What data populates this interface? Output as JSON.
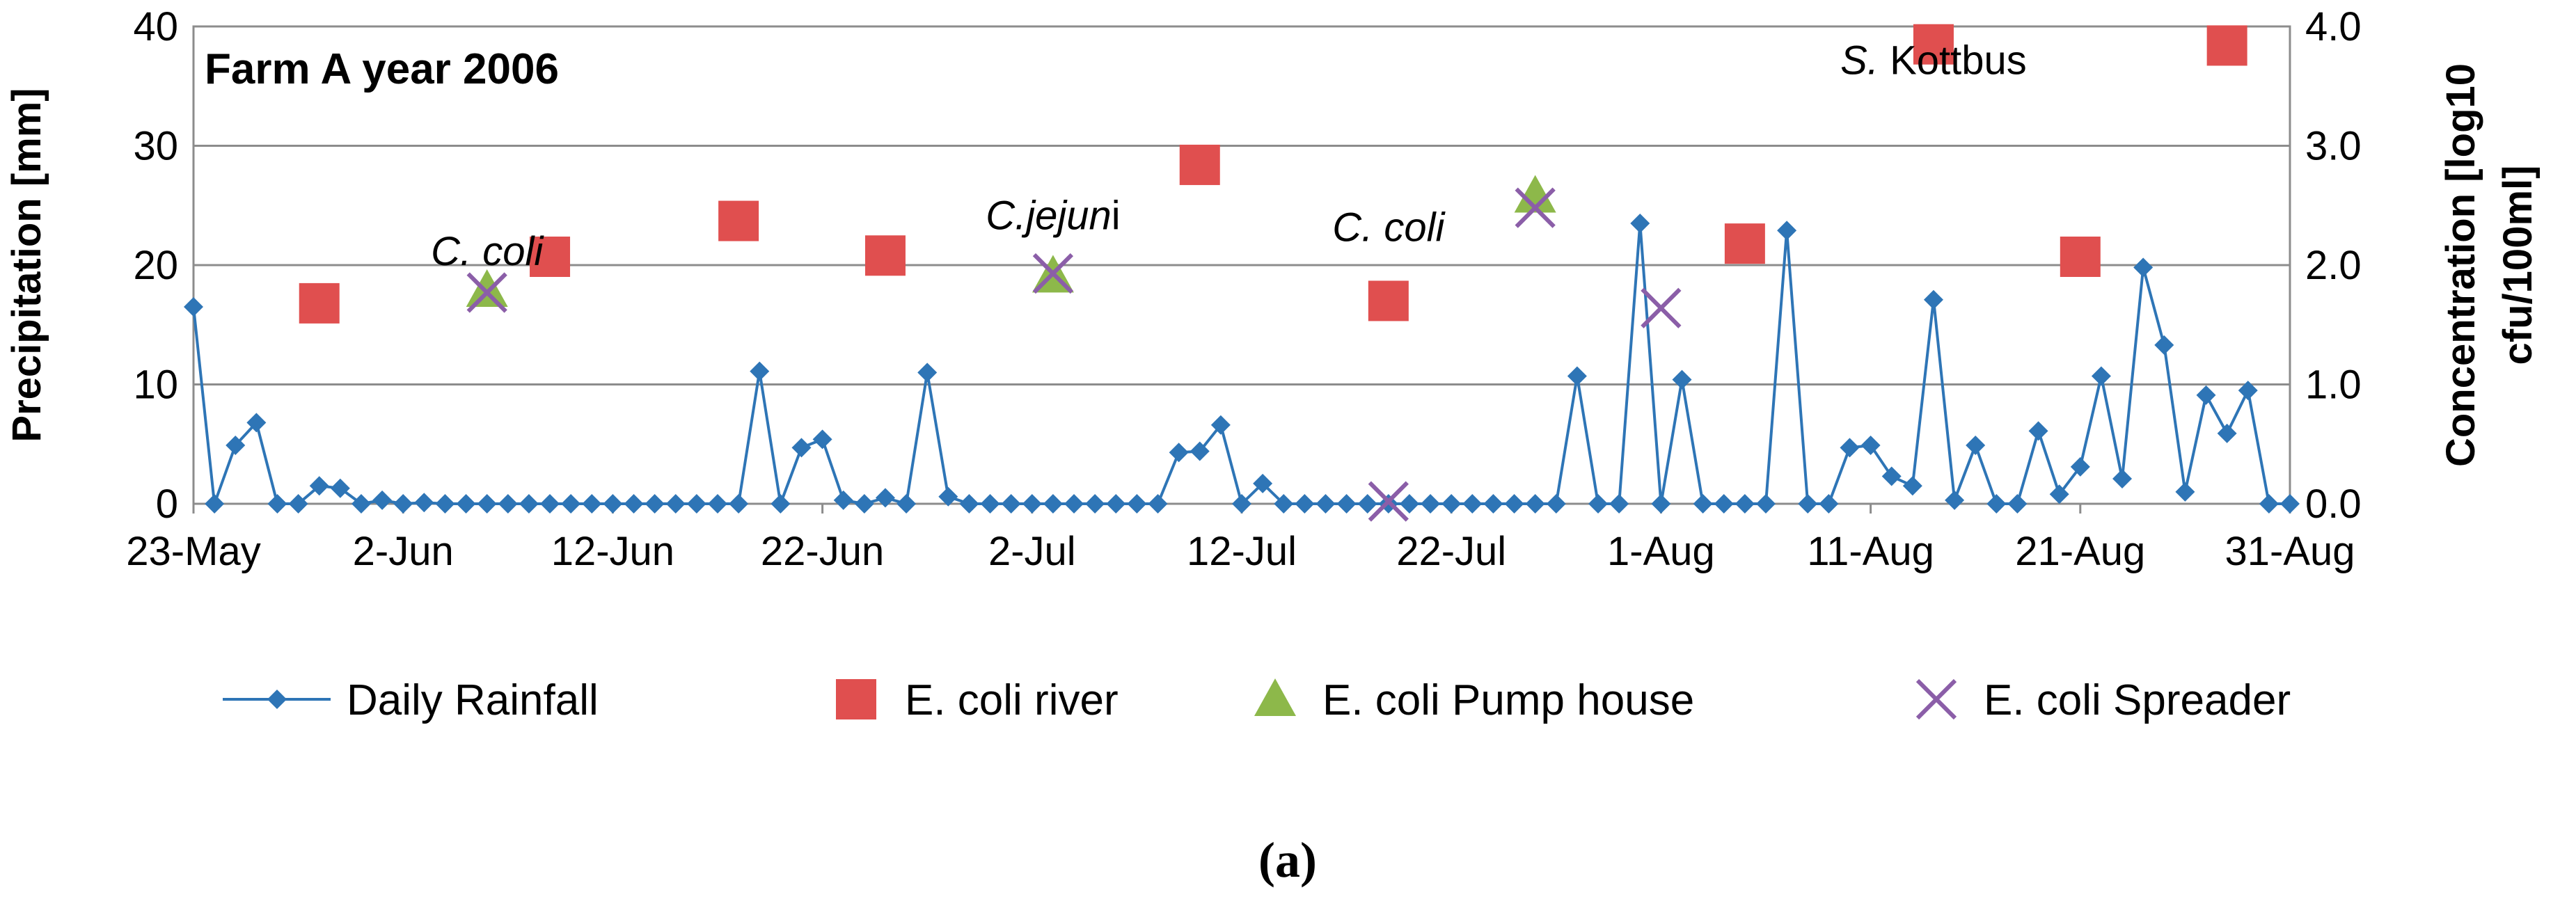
{
  "chart_data": {
    "type": "line",
    "title": "Farm A year 2006",
    "ylabel": "Precipitation [mm]",
    "y2label": "Concentration [log10 cfu/100ml]",
    "y2label_lines": [
      "Concentration [log10",
      "cfu/100ml]"
    ],
    "ylim": [
      0,
      40
    ],
    "y2lim": [
      0,
      4
    ],
    "yticks": [
      "0",
      "10",
      "20",
      "30",
      "40"
    ],
    "y2ticks": [
      "0.0",
      "1.0",
      "2.0",
      "3.0",
      "4.0"
    ],
    "xlim": [
      "2006-05-23",
      "2006-08-31"
    ],
    "xticks": [
      {
        "date": "2006-05-23",
        "label": "23-May"
      },
      {
        "date": "2006-06-02",
        "label": "2-Jun"
      },
      {
        "date": "2006-06-12",
        "label": "12-Jun"
      },
      {
        "date": "2006-06-22",
        "label": "22-Jun"
      },
      {
        "date": "2006-07-02",
        "label": "2-Jul"
      },
      {
        "date": "2006-07-12",
        "label": "12-Jul"
      },
      {
        "date": "2006-07-22",
        "label": "22-Jul"
      },
      {
        "date": "2006-08-01",
        "label": "1-Aug"
      },
      {
        "date": "2006-08-11",
        "label": "11-Aug"
      },
      {
        "date": "2006-08-21",
        "label": "21-Aug"
      },
      {
        "date": "2006-08-31",
        "label": "31-Aug"
      }
    ],
    "grid": "horizontal",
    "legend_position": "bottom",
    "series": [
      {
        "name": "Daily Rainfall",
        "axis": "left",
        "marker": "diamond",
        "color": "#2E75B6",
        "x": [
          "2006-05-23",
          "2006-05-24",
          "2006-05-25",
          "2006-05-26",
          "2006-05-27",
          "2006-05-28",
          "2006-05-29",
          "2006-05-30",
          "2006-05-31",
          "2006-06-01",
          "2006-06-02",
          "2006-06-03",
          "2006-06-04",
          "2006-06-05",
          "2006-06-06",
          "2006-06-07",
          "2006-06-08",
          "2006-06-09",
          "2006-06-10",
          "2006-06-11",
          "2006-06-12",
          "2006-06-13",
          "2006-06-14",
          "2006-06-15",
          "2006-06-16",
          "2006-06-17",
          "2006-06-18",
          "2006-06-19",
          "2006-06-20",
          "2006-06-21",
          "2006-06-22",
          "2006-06-23",
          "2006-06-24",
          "2006-06-25",
          "2006-06-26",
          "2006-06-27",
          "2006-06-28",
          "2006-06-29",
          "2006-06-30",
          "2006-07-01",
          "2006-07-02",
          "2006-07-03",
          "2006-07-04",
          "2006-07-05",
          "2006-07-06",
          "2006-07-07",
          "2006-07-08",
          "2006-07-09",
          "2006-07-10",
          "2006-07-11",
          "2006-07-12",
          "2006-07-13",
          "2006-07-14",
          "2006-07-15",
          "2006-07-16",
          "2006-07-17",
          "2006-07-18",
          "2006-07-19",
          "2006-07-20",
          "2006-07-21",
          "2006-07-22",
          "2006-07-23",
          "2006-07-24",
          "2006-07-25",
          "2006-07-26",
          "2006-07-27",
          "2006-07-28",
          "2006-07-29",
          "2006-07-30",
          "2006-07-31",
          "2006-08-01",
          "2006-08-02",
          "2006-08-03",
          "2006-08-04",
          "2006-08-05",
          "2006-08-06",
          "2006-08-07",
          "2006-08-08",
          "2006-08-09",
          "2006-08-10",
          "2006-08-11",
          "2006-08-12",
          "2006-08-13",
          "2006-08-14",
          "2006-08-15",
          "2006-08-16",
          "2006-08-17",
          "2006-08-18",
          "2006-08-19",
          "2006-08-20",
          "2006-08-21",
          "2006-08-22",
          "2006-08-23",
          "2006-08-24",
          "2006-08-25",
          "2006-08-26",
          "2006-08-27",
          "2006-08-28",
          "2006-08-29",
          "2006-08-30",
          "2006-08-31"
        ],
        "values": [
          16.5,
          0,
          4.9,
          6.8,
          0,
          0,
          1.5,
          1.3,
          0,
          0.3,
          0,
          0.1,
          0,
          0,
          0,
          0,
          0,
          0,
          0,
          0,
          0,
          0,
          0,
          0,
          0,
          0,
          0,
          11.1,
          0,
          4.7,
          5.4,
          0.3,
          0,
          0.5,
          0,
          11,
          0.6,
          0,
          0,
          0,
          0,
          0,
          0,
          0,
          0,
          0,
          0,
          4.3,
          4.4,
          6.6,
          0,
          1.7,
          0,
          0,
          0,
          0,
          0,
          0,
          0,
          0,
          0,
          0,
          0,
          0,
          0,
          0,
          10.7,
          0,
          0,
          23.5,
          0,
          10.4,
          0,
          0,
          0,
          0,
          22.9,
          0,
          0,
          4.7,
          4.9,
          2.3,
          1.5,
          17.1,
          0.3,
          4.9,
          0,
          0,
          6.1,
          0.8,
          3.1,
          10.7,
          2.1,
          19.8,
          13.3,
          1,
          9.1,
          5.9,
          9.5,
          0,
          0
        ]
      },
      {
        "name": "E. coli river",
        "axis": "right",
        "marker": "square",
        "color": "#E04F4F",
        "x": [
          "2006-05-29",
          "2006-06-09",
          "2006-06-18",
          "2006-06-25",
          "2006-07-10",
          "2006-07-19",
          "2006-08-05",
          "2006-08-14",
          "2006-08-21",
          "2006-08-28"
        ],
        "values": [
          1.68,
          2.07,
          2.37,
          2.08,
          2.84,
          1.7,
          2.18,
          3.85,
          2.07,
          3.84
        ]
      },
      {
        "name": "E. coli Pump house",
        "axis": "right",
        "marker": "triangle",
        "color": "#8DB84A",
        "x": [
          "2006-06-06",
          "2006-07-03",
          "2006-07-26"
        ],
        "values": [
          1.79,
          1.91,
          2.58
        ]
      },
      {
        "name": "E. coli Spreader",
        "axis": "right",
        "marker": "x",
        "color": "#8B5EA8",
        "x": [
          "2006-06-06",
          "2006-07-03",
          "2006-07-19",
          "2006-07-26",
          "2006-08-01"
        ],
        "values": [
          1.77,
          1.93,
          0.02,
          2.48,
          1.64
        ]
      }
    ],
    "annotations": [
      {
        "id": "ccoli-1",
        "italic": "C. coli",
        "normal": "",
        "x": "2006-06-06",
        "y2": 2.0
      },
      {
        "id": "cjejuni",
        "italic": "C.jejun",
        "normal": "i",
        "x": "2006-07-03",
        "y2": 2.3
      },
      {
        "id": "ccoli-2",
        "italic": "C. coli",
        "normal": "",
        "x": "2006-07-19",
        "y2": 2.2
      },
      {
        "id": "skottbus",
        "italic": "S.",
        "normal": " Kottbus",
        "x": "2006-08-14",
        "y2": 3.6
      }
    ]
  },
  "caption": {
    "open": "(",
    "letter": "a",
    "close": ")"
  }
}
